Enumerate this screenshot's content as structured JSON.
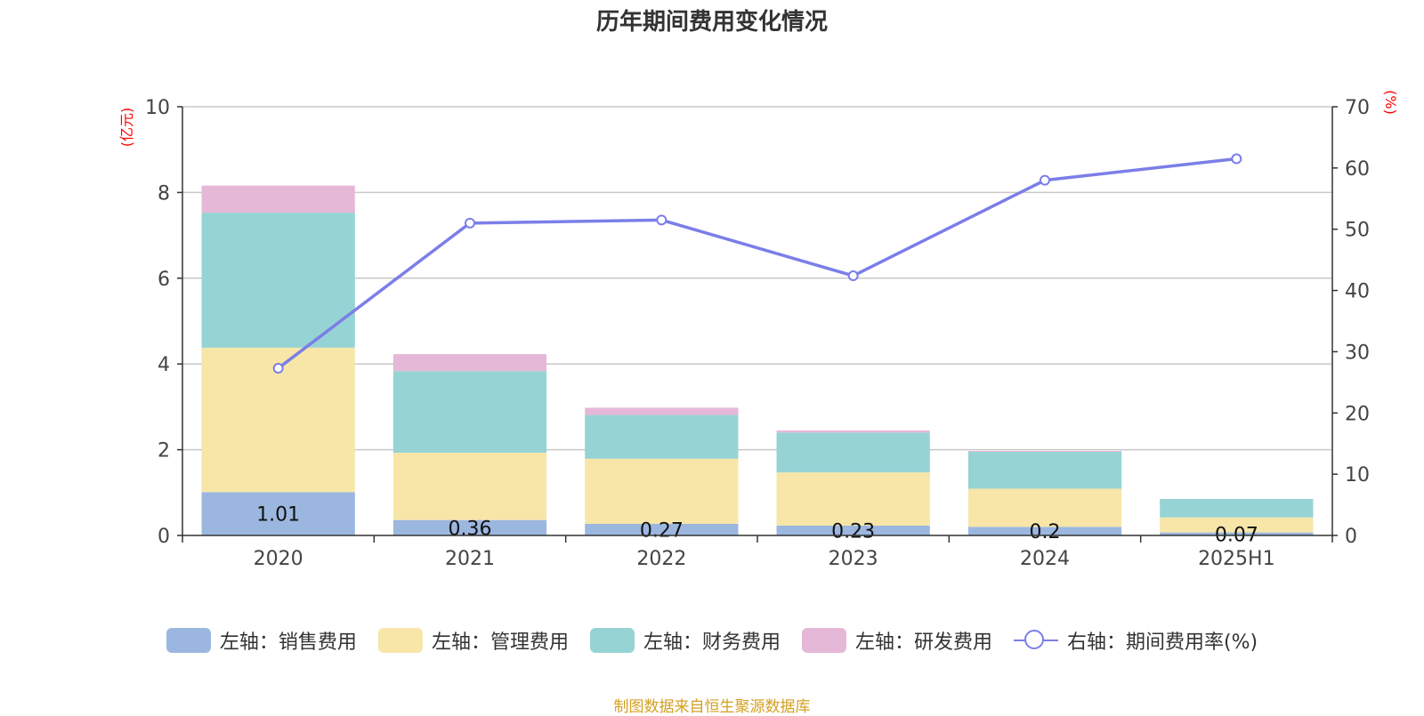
{
  "chart_data": {
    "type": "bar",
    "title": "历年期间费用变化情况",
    "categories": [
      "2020",
      "2021",
      "2022",
      "2023",
      "2024",
      "2025H1"
    ],
    "left_axis": {
      "unit": "(亿元)",
      "range": [
        0,
        10
      ],
      "ticks": [
        0,
        2,
        4,
        6,
        8,
        10
      ]
    },
    "right_axis": {
      "unit": "(%)",
      "range": [
        0,
        70
      ],
      "ticks": [
        0,
        10,
        20,
        30,
        40,
        50,
        60,
        70
      ]
    },
    "series": [
      {
        "name": "左轴：销售费用",
        "kind": "bar",
        "axis": "left",
        "color": "#9bb7e0",
        "values": [
          1.01,
          0.36,
          0.27,
          0.23,
          0.2,
          0.07
        ],
        "labels": [
          "1.01",
          "0.36",
          "0.27",
          "0.23",
          "0.2",
          "0.07"
        ]
      },
      {
        "name": "左轴：管理费用",
        "kind": "bar",
        "axis": "left",
        "color": "#f7e6a8",
        "values": [
          3.37,
          1.57,
          1.52,
          1.24,
          0.89,
          0.35
        ]
      },
      {
        "name": "左轴：财务费用",
        "kind": "bar",
        "axis": "left",
        "color": "#96d3d4",
        "values": [
          3.15,
          1.9,
          1.02,
          0.93,
          0.86,
          0.43
        ]
      },
      {
        "name": "左轴：研发费用",
        "kind": "bar",
        "axis": "left",
        "color": "#e6b8d8",
        "values": [
          0.63,
          0.4,
          0.17,
          0.05,
          0.02,
          0.0
        ]
      },
      {
        "name": "右轴：期间费用率(%)",
        "kind": "line",
        "axis": "right",
        "color": "#7b7ee8",
        "values": [
          27.3,
          51.0,
          51.5,
          42.4,
          58.0,
          61.5
        ]
      }
    ],
    "grid": true,
    "legend": "bottom"
  },
  "source_note": "制图数据来自恒生聚源数据库"
}
